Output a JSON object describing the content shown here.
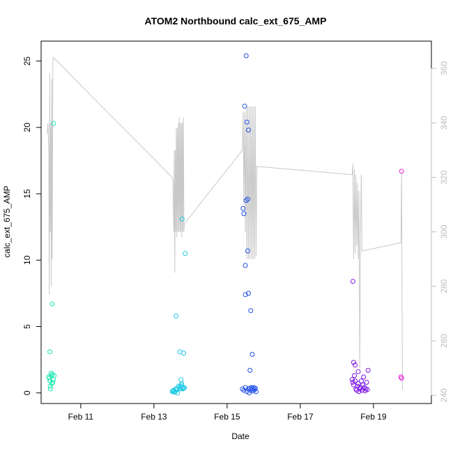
{
  "chart_data": {
    "type": "scatter",
    "title": "ATOM2 Northbound calc_ext_675_AMP",
    "xlabel": "Date",
    "ylabel": "calc_ext_675_AMP",
    "xlim": [
      "2022-02-09T22:00",
      "2022-02-20T14:00"
    ],
    "ylim": [
      -0.8,
      26.5
    ],
    "y2lim": [
      237,
      370
    ],
    "x_ticks": [
      "Feb 11",
      "Feb 13",
      "Feb 15",
      "Feb 17",
      "Feb 19"
    ],
    "x_tick_dates": [
      "2022-02-11",
      "2022-02-13",
      "2022-02-15",
      "2022-02-17",
      "2022-02-19"
    ],
    "y_ticks": [
      0,
      5,
      10,
      15,
      20,
      25
    ],
    "y2_ticks": [
      240,
      260,
      280,
      300,
      320,
      340,
      360
    ],
    "grid": false,
    "legend": "none",
    "colors": {
      "secondary_line": "#c8c8c8",
      "right_axis": "#bbbbbb",
      "axis": "#000000"
    },
    "series": [
      {
        "color": "#19e6b0",
        "points": [
          [
            "2022-02-10T03:00",
            1.2
          ],
          [
            "2022-02-10T03:30",
            1.1
          ],
          [
            "2022-02-10T03:50",
            0.9
          ],
          [
            "2022-02-10T04:00",
            0.5
          ],
          [
            "2022-02-10T04:10",
            0.3
          ],
          [
            "2022-02-10T04:30",
            1.5
          ],
          [
            "2022-02-10T04:50",
            1.3
          ],
          [
            "2022-02-10T05:00",
            0.7
          ],
          [
            "2022-02-10T05:20",
            1.4
          ],
          [
            "2022-02-10T05:40",
            0.8
          ],
          [
            "2022-02-10T06:00",
            1.0
          ],
          [
            "2022-02-10T06:30",
            1.3
          ],
          [
            "2022-02-10T03:45",
            3.1
          ],
          [
            "2022-02-10T05:20",
            6.7
          ],
          [
            "2022-02-10T06:10",
            20.3
          ]
        ]
      },
      {
        "color": "#19c8e6",
        "points": [
          [
            "2022-02-13T12:00",
            0.1
          ],
          [
            "2022-02-13T12:30",
            0.15
          ],
          [
            "2022-02-13T13:00",
            0.2
          ],
          [
            "2022-02-13T13:30",
            0.05
          ],
          [
            "2022-02-13T14:00",
            0.1
          ],
          [
            "2022-02-13T14:30",
            0.3
          ],
          [
            "2022-02-13T15:00",
            0.25
          ],
          [
            "2022-02-13T15:30",
            0.0
          ],
          [
            "2022-02-13T16:00",
            0.5
          ],
          [
            "2022-02-13T16:30",
            0.4
          ],
          [
            "2022-02-13T17:00",
            0.3
          ],
          [
            "2022-02-13T17:30",
            0.5
          ],
          [
            "2022-02-13T18:00",
            0.6
          ],
          [
            "2022-02-13T18:30",
            0.4
          ],
          [
            "2022-02-13T19:00",
            0.3
          ],
          [
            "2022-02-13T19:30",
            0.35
          ],
          [
            "2022-02-13T20:00",
            0.4
          ],
          [
            "2022-02-13T17:45",
            1.0
          ],
          [
            "2022-02-13T18:15",
            0.7
          ],
          [
            "2022-02-13T14:30",
            5.8
          ],
          [
            "2022-02-13T17:00",
            3.1
          ],
          [
            "2022-02-13T19:30",
            3.0
          ],
          [
            "2022-02-13T18:30",
            13.1
          ],
          [
            "2022-02-13T20:30",
            10.5
          ]
        ]
      },
      {
        "color": "#1f4fe8",
        "points": [
          [
            "2022-02-15T10:00",
            0.3
          ],
          [
            "2022-02-15T11:00",
            0.2
          ],
          [
            "2022-02-15T12:00",
            0.4
          ],
          [
            "2022-02-15T13:00",
            0.1
          ],
          [
            "2022-02-15T14:00",
            0.3
          ],
          [
            "2022-02-15T14:30",
            0.0
          ],
          [
            "2022-02-15T15:00",
            0.35
          ],
          [
            "2022-02-15T15:30",
            0.2
          ],
          [
            "2022-02-15T16:00",
            0.4
          ],
          [
            "2022-02-15T16:30",
            0.3
          ],
          [
            "2022-02-15T17:00",
            0.15
          ],
          [
            "2022-02-15T17:30",
            0.4
          ],
          [
            "2022-02-15T18:00",
            0.25
          ],
          [
            "2022-02-15T18:30",
            0.35
          ],
          [
            "2022-02-15T19:00",
            0.1
          ],
          [
            "2022-02-15T10:30",
            13.9
          ],
          [
            "2022-02-15T11:00",
            13.5
          ],
          [
            "2022-02-15T11:30",
            21.6
          ],
          [
            "2022-02-15T12:30",
            14.5
          ],
          [
            "2022-02-15T13:30",
            14.6
          ],
          [
            "2022-02-15T14:00",
            19.8
          ],
          [
            "2022-02-15T13:00",
            20.4
          ],
          [
            "2022-02-15T12:00",
            9.6
          ],
          [
            "2022-02-15T13:30",
            10.7
          ],
          [
            "2022-02-15T12:00",
            7.4
          ],
          [
            "2022-02-15T14:00",
            7.5
          ],
          [
            "2022-02-15T15:30",
            6.2
          ],
          [
            "2022-02-15T16:30",
            2.9
          ],
          [
            "2022-02-15T15:00",
            1.7
          ],
          [
            "2022-02-15T12:30",
            25.4
          ]
        ]
      },
      {
        "color": "#7a12e8",
        "points": [
          [
            "2022-02-18T10:00",
            1.0
          ],
          [
            "2022-02-18T10:30",
            0.8
          ],
          [
            "2022-02-18T11:00",
            0.6
          ],
          [
            "2022-02-18T11:30",
            1.3
          ],
          [
            "2022-02-18T12:00",
            0.9
          ],
          [
            "2022-02-18T12:30",
            0.3
          ],
          [
            "2022-02-18T13:00",
            0.2
          ],
          [
            "2022-02-18T13:30",
            0.5
          ],
          [
            "2022-02-18T14:00",
            0.7
          ],
          [
            "2022-02-18T14:30",
            0.1
          ],
          [
            "2022-02-18T15:00",
            0.3
          ],
          [
            "2022-02-18T15:30",
            0.4
          ],
          [
            "2022-02-18T16:00",
            0.9
          ],
          [
            "2022-02-18T16:30",
            0.2
          ],
          [
            "2022-02-18T17:00",
            0.6
          ],
          [
            "2022-02-18T17:30",
            1.2
          ],
          [
            "2022-02-18T18:00",
            0.4
          ],
          [
            "2022-02-18T18:30",
            0.15
          ],
          [
            "2022-02-18T19:00",
            0.3
          ],
          [
            "2022-02-18T19:30",
            0.8
          ],
          [
            "2022-02-18T20:00",
            0.25
          ],
          [
            "2022-02-18T11:00",
            2.3
          ],
          [
            "2022-02-18T12:00",
            2.1
          ],
          [
            "2022-02-18T14:00",
            1.6
          ],
          [
            "2022-02-18T20:30",
            1.7
          ],
          [
            "2022-02-18T10:30",
            8.4
          ]
        ]
      },
      {
        "color": "#e619d8",
        "points": [
          [
            "2022-02-19T18:00",
            1.2
          ],
          [
            "2022-02-19T18:30",
            1.1
          ],
          [
            "2022-02-19T18:30",
            16.7
          ]
        ]
      }
    ],
    "secondary_line": {
      "color": "#c8c8c8",
      "axis": "right",
      "points": [
        [
          "2022-02-10T02:00",
          336
        ],
        [
          "2022-02-10T02:30",
          340
        ],
        [
          "2022-02-10T03:00",
          330
        ],
        [
          "2022-02-10T03:20",
          277
        ],
        [
          "2022-02-10T03:40",
          358
        ],
        [
          "2022-02-10T04:00",
          300
        ],
        [
          "2022-02-10T04:20",
          340
        ],
        [
          "2022-02-10T04:40",
          280
        ],
        [
          "2022-02-10T05:00",
          356
        ],
        [
          "2022-02-10T05:20",
          290
        ],
        [
          "2022-02-10T05:40",
          362
        ],
        [
          "2022-02-10T06:00",
          364
        ],
        [
          "2022-02-13T12:00",
          320
        ],
        [
          "2022-02-13T12:30",
          318
        ],
        [
          "2022-02-13T13:00",
          300
        ],
        [
          "2022-02-13T13:20",
          330
        ],
        [
          "2022-02-13T13:40",
          285
        ],
        [
          "2022-02-13T14:00",
          330
        ],
        [
          "2022-02-13T14:20",
          300
        ],
        [
          "2022-02-13T14:40",
          338
        ],
        [
          "2022-02-13T15:00",
          298
        ],
        [
          "2022-02-13T15:20",
          338
        ],
        [
          "2022-02-13T15:40",
          300
        ],
        [
          "2022-02-13T16:00",
          340
        ],
        [
          "2022-02-13T16:20",
          300
        ],
        [
          "2022-02-13T16:40",
          342
        ],
        [
          "2022-02-13T17:00",
          300
        ],
        [
          "2022-02-13T17:20",
          340
        ],
        [
          "2022-02-13T17:40",
          300
        ],
        [
          "2022-02-13T18:00",
          340
        ],
        [
          "2022-02-13T18:20",
          298
        ],
        [
          "2022-02-13T18:40",
          340
        ],
        [
          "2022-02-13T19:00",
          300
        ],
        [
          "2022-02-13T19:20",
          342
        ],
        [
          "2022-02-13T19:40",
          300
        ],
        [
          "2022-02-13T20:00",
          303
        ],
        [
          "2022-02-15T10:00",
          330
        ],
        [
          "2022-02-15T10:30",
          344
        ],
        [
          "2022-02-15T11:00",
          310
        ],
        [
          "2022-02-15T11:30",
          344
        ],
        [
          "2022-02-15T12:00",
          300
        ],
        [
          "2022-02-15T12:30",
          346
        ],
        [
          "2022-02-15T13:00",
          290
        ],
        [
          "2022-02-15T13:30",
          346
        ],
        [
          "2022-02-15T14:00",
          290
        ],
        [
          "2022-02-15T14:30",
          346
        ],
        [
          "2022-02-15T15:00",
          290
        ],
        [
          "2022-02-15T15:30",
          346
        ],
        [
          "2022-02-15T16:00",
          290
        ],
        [
          "2022-02-15T16:30",
          346
        ],
        [
          "2022-02-15T17:00",
          290
        ],
        [
          "2022-02-15T17:30",
          346
        ],
        [
          "2022-02-15T18:00",
          290
        ],
        [
          "2022-02-15T18:30",
          346
        ],
        [
          "2022-02-15T19:00",
          291
        ],
        [
          "2022-02-15T19:30",
          324
        ],
        [
          "2022-02-18T10:00",
          321
        ],
        [
          "2022-02-18T10:30",
          325
        ],
        [
          "2022-02-18T11:00",
          290
        ],
        [
          "2022-02-18T11:30",
          323
        ],
        [
          "2022-02-18T12:00",
          292
        ],
        [
          "2022-02-18T12:30",
          321
        ],
        [
          "2022-02-18T13:00",
          295
        ],
        [
          "2022-02-18T13:30",
          318
        ],
        [
          "2022-02-18T14:00",
          290
        ],
        [
          "2022-02-18T14:30",
          315
        ],
        [
          "2022-02-18T15:00",
          250
        ],
        [
          "2022-02-18T15:30",
          300
        ],
        [
          "2022-02-18T16:00",
          321
        ],
        [
          "2022-02-18T16:30",
          293
        ],
        [
          "2022-02-19T18:00",
          296
        ],
        [
          "2022-02-19T18:30",
          322
        ],
        [
          "2022-02-19T19:00",
          242
        ]
      ]
    }
  }
}
